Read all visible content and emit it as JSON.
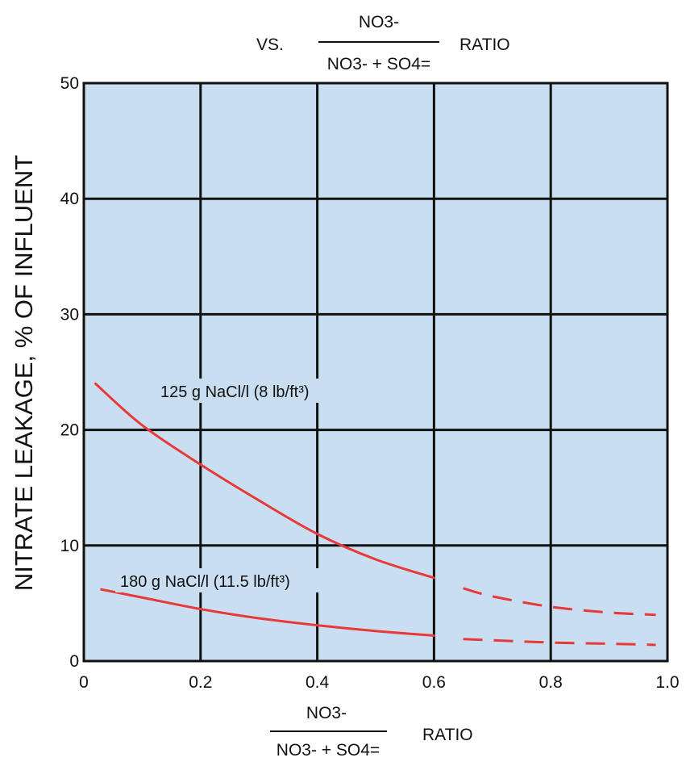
{
  "chart_data": {
    "type": "line",
    "title": {
      "prefix": "VS.",
      "numerator": "NO3-",
      "denominator": "NO3- + SO4=",
      "suffix": "RATIO"
    },
    "ylabel": "NITRATE LEAKAGE, % OF INFLUENT",
    "xlabel": {
      "numerator": "NO3-",
      "denominator": "NO3- + SO4=",
      "suffix": "RATIO"
    },
    "xlim": [
      0,
      1.0
    ],
    "ylim": [
      0,
      50
    ],
    "x_ticks": [
      "0",
      "0.2",
      "0.4",
      "0.6",
      "0.8",
      "1.0"
    ],
    "y_ticks": [
      "0",
      "10",
      "20",
      "30",
      "40",
      "50"
    ],
    "grid": true,
    "line_color": "#e8393a",
    "series": [
      {
        "label": "125 g NaCl/l (8 lb/ft³)",
        "solid": [
          [
            0.02,
            24.0
          ],
          [
            0.1,
            20.4
          ],
          [
            0.2,
            17.0
          ],
          [
            0.3,
            13.9
          ],
          [
            0.4,
            11.0
          ],
          [
            0.5,
            8.8
          ],
          [
            0.6,
            7.2
          ]
        ],
        "dashed": [
          [
            0.65,
            6.3
          ],
          [
            0.7,
            5.6
          ],
          [
            0.8,
            4.7
          ],
          [
            0.9,
            4.2
          ],
          [
            0.98,
            4.0
          ]
        ]
      },
      {
        "label": "180 g NaCl/l (11.5 lb/ft³)",
        "solid": [
          [
            0.03,
            6.2
          ],
          [
            0.1,
            5.5
          ],
          [
            0.2,
            4.5
          ],
          [
            0.3,
            3.7
          ],
          [
            0.4,
            3.1
          ],
          [
            0.5,
            2.6
          ],
          [
            0.6,
            2.2
          ]
        ],
        "dashed": [
          [
            0.65,
            1.9
          ],
          [
            0.7,
            1.8
          ],
          [
            0.8,
            1.6
          ],
          [
            0.9,
            1.5
          ],
          [
            0.98,
            1.4
          ]
        ]
      }
    ]
  }
}
